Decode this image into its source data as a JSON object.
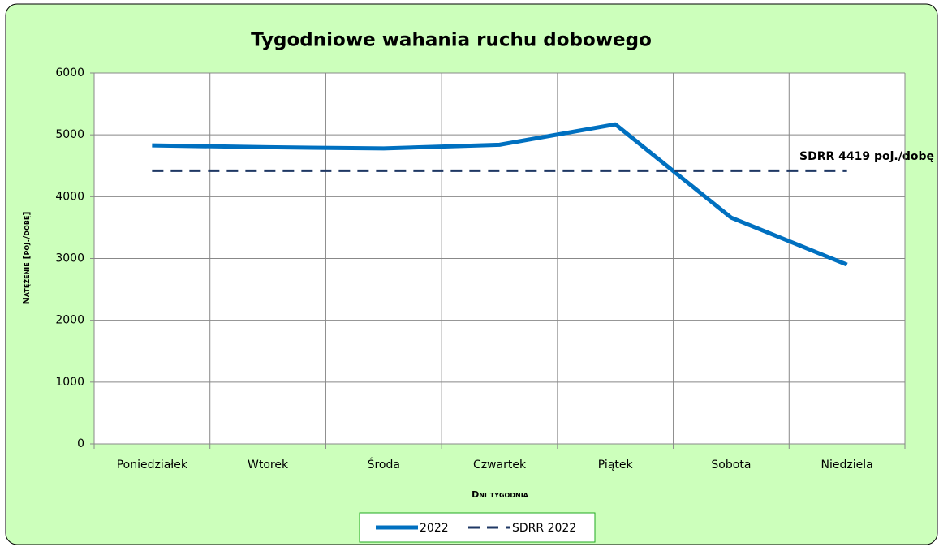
{
  "chart_data": {
    "type": "line",
    "title": "Tygodniowe wahania ruchu dobowego",
    "x_label": "Dni tygodnia",
    "y_label": "Natężenie [poj./dobę]",
    "annotation": "SDRR 4419  poj./dobę",
    "categories": [
      "Poniedziałek",
      "Wtorek",
      "Środa",
      "Czwartek",
      "Piątek",
      "Sobota",
      "Niedziela"
    ],
    "series": [
      {
        "name": "2022",
        "color": "#0070c0",
        "dashed": false,
        "values": [
          4830,
          4800,
          4780,
          4840,
          5170,
          3660,
          2900
        ]
      },
      {
        "name": "SDRR 2022",
        "color": "#1f3864",
        "dashed": true,
        "values": [
          4419,
          4419,
          4419,
          4419,
          4419,
          4419,
          4419
        ]
      }
    ],
    "ylim": [
      0,
      6000
    ],
    "yticks": [
      0,
      1000,
      2000,
      3000,
      4000,
      5000,
      6000
    ],
    "grid": true,
    "legend": "bottom"
  }
}
